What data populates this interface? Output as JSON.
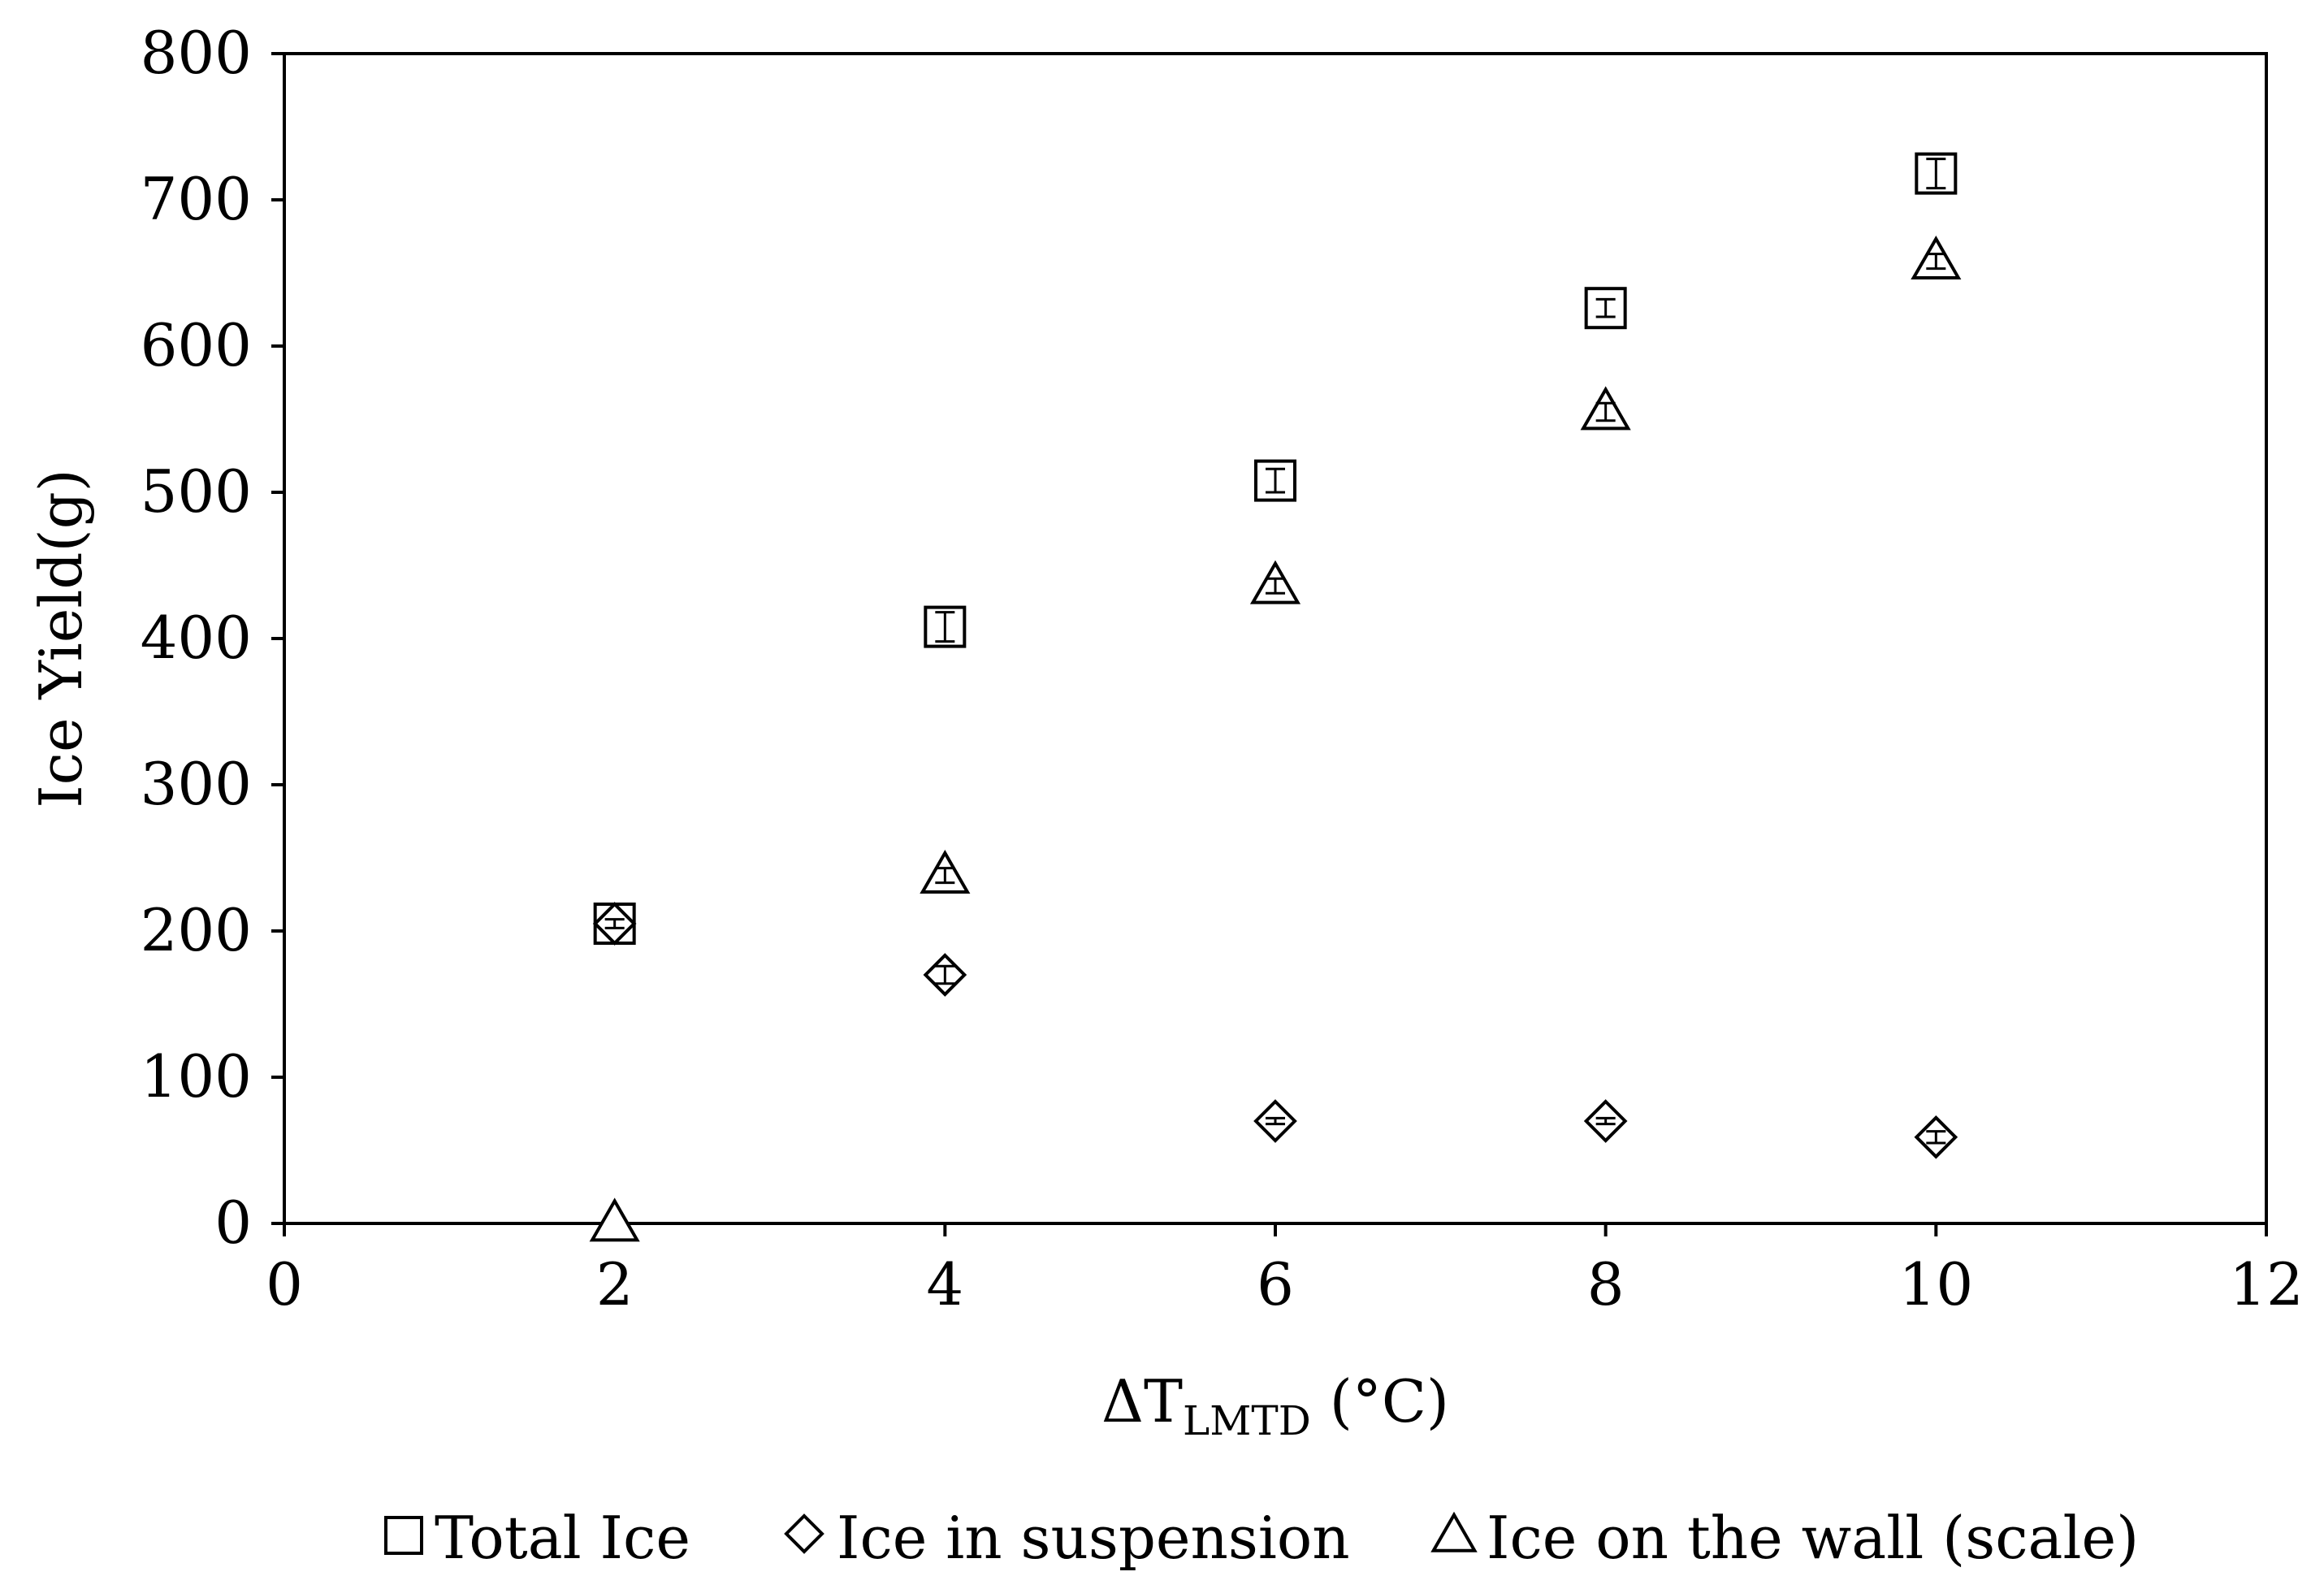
{
  "chart_data": {
    "type": "scatter",
    "xlabel": {
      "main": "ΔT",
      "sub": "LMTD",
      "unit": " (°C)"
    },
    "ylabel": "Ice Yield(g)",
    "xlim": [
      0,
      12
    ],
    "ylim": [
      0,
      800
    ],
    "xticks": [
      "0",
      "2",
      "4",
      "6",
      "8",
      "10",
      "12"
    ],
    "yticks": [
      "0",
      "100",
      "200",
      "300",
      "400",
      "500",
      "600",
      "700",
      "800"
    ],
    "grid": false,
    "legend_position": "bottom",
    "series": [
      {
        "name": "Total Ice",
        "marker": "square",
        "points": [
          [
            2,
            205
          ],
          [
            4,
            408
          ],
          [
            6,
            508
          ],
          [
            8,
            626
          ],
          [
            10,
            718
          ]
        ],
        "errors": [
          3,
          10,
          8,
          6,
          10
        ]
      },
      {
        "name": "Ice in suspension",
        "marker": "diamond",
        "points": [
          [
            2,
            205
          ],
          [
            4,
            170
          ],
          [
            6,
            70
          ],
          [
            8,
            70
          ],
          [
            10,
            59
          ]
        ],
        "errors": [
          3,
          6,
          2,
          2,
          4
        ]
      },
      {
        "name": "Ice on the wall (scale)",
        "marker": "triangle",
        "points": [
          [
            2,
            0
          ],
          [
            4,
            238
          ],
          [
            6,
            436
          ],
          [
            8,
            555
          ],
          [
            10,
            658
          ]
        ],
        "errors": [
          0,
          5,
          5,
          6,
          5
        ]
      }
    ]
  }
}
